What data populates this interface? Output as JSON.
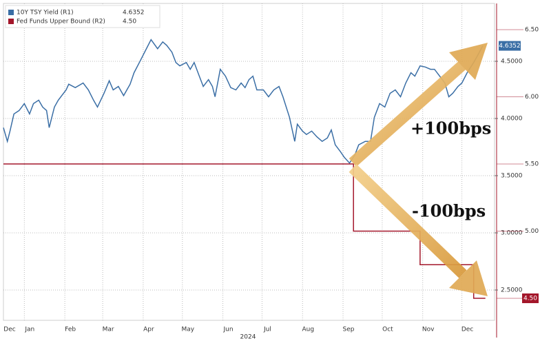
{
  "chart_data": {
    "type": "line",
    "xlabel": "2024",
    "xlim": [
      -16,
      360
    ],
    "xticks": [
      {
        "value": -16,
        "label": "Dec"
      },
      {
        "value": 0,
        "label": "Jan"
      },
      {
        "value": 31,
        "label": "Feb"
      },
      {
        "value": 60,
        "label": "Mar"
      },
      {
        "value": 91,
        "label": "Apr"
      },
      {
        "value": 121,
        "label": "May"
      },
      {
        "value": 152,
        "label": "Jun"
      },
      {
        "value": 182,
        "label": "Jul"
      },
      {
        "value": 213,
        "label": "Aug"
      },
      {
        "value": 244,
        "label": "Sep"
      },
      {
        "value": 274,
        "label": "Oct"
      },
      {
        "value": 305,
        "label": "Nov"
      },
      {
        "value": 335,
        "label": "Dec"
      }
    ],
    "ylim": [
      2.235,
      5.006
    ],
    "yticks": [
      {
        "value": 2.5,
        "label": "2.5000"
      },
      {
        "value": 3,
        "label": "3.0000"
      },
      {
        "value": 3.5,
        "label": "3.5000"
      },
      {
        "value": 4,
        "label": "4.0000"
      },
      {
        "value": 4.5,
        "label": "4.5000"
      }
    ],
    "y2lim": [
      4.336,
      6.695
    ],
    "y2ticks": [
      {
        "value": 4.5,
        "label": "4.50"
      },
      {
        "value": 5,
        "label": "5.00"
      },
      {
        "value": 5.5,
        "label": "5.50"
      },
      {
        "value": 6,
        "label": "6.00"
      },
      {
        "value": 6.5,
        "label": "6.50"
      }
    ],
    "grid": true,
    "legend": "top-left",
    "annotations": [
      "+100bps",
      "-100bps"
    ],
    "series": [
      {
        "name": "10Y TSY Yield (R1)",
        "color": "#3a6ea5",
        "x": [
          -16,
          -13,
          -11,
          -8,
          -4,
          0,
          4,
          7,
          11,
          14,
          17,
          19,
          23,
          26,
          32,
          34,
          39,
          45,
          49,
          53,
          56,
          61,
          65,
          68,
          72,
          76,
          81,
          84,
          89,
          93,
          97,
          102,
          106,
          109,
          113,
          116,
          119,
          124,
          127,
          130,
          134,
          137,
          141,
          144,
          146,
          150,
          154,
          158,
          162,
          166,
          169,
          172,
          175,
          178,
          183,
          187,
          191,
          195,
          198,
          203,
          207,
          209,
          213,
          216,
          220,
          224,
          228,
          232,
          235,
          238,
          242,
          245,
          249,
          253,
          256,
          261,
          265,
          268,
          272,
          276,
          280,
          284,
          288,
          292,
          296,
          299,
          303,
          307,
          311,
          314,
          318,
          322,
          325,
          328,
          332,
          335,
          339,
          344,
          347,
          351
        ],
        "values": [
          3.92,
          3.8,
          3.89,
          4.04,
          4.07,
          4.13,
          4.04,
          4.13,
          4.16,
          4.1,
          4.07,
          3.92,
          4.1,
          4.16,
          4.25,
          4.3,
          4.27,
          4.31,
          4.25,
          4.16,
          4.1,
          4.22,
          4.33,
          4.25,
          4.28,
          4.2,
          4.3,
          4.4,
          4.51,
          4.6,
          4.69,
          4.61,
          4.67,
          4.64,
          4.58,
          4.49,
          4.46,
          4.49,
          4.43,
          4.49,
          4.37,
          4.28,
          4.34,
          4.28,
          4.19,
          4.43,
          4.37,
          4.27,
          4.25,
          4.31,
          4.27,
          4.34,
          4.37,
          4.25,
          4.25,
          4.19,
          4.25,
          4.28,
          4.19,
          4.01,
          3.8,
          3.95,
          3.89,
          3.86,
          3.89,
          3.84,
          3.8,
          3.83,
          3.9,
          3.77,
          3.71,
          3.66,
          3.61,
          3.68,
          3.77,
          3.8,
          3.8,
          4.01,
          4.13,
          4.1,
          4.22,
          4.25,
          4.19,
          4.31,
          4.4,
          4.37,
          4.46,
          4.45,
          4.43,
          4.43,
          4.37,
          4.31,
          4.19,
          4.22,
          4.28,
          4.31,
          4.4,
          4.49,
          4.55,
          4.6352
        ]
      },
      {
        "name": "Fed Funds Upper Bound (R2)",
        "color": "#a3162a",
        "axis": "y2",
        "x": [
          -16,
          252,
          252,
          303,
          303,
          344,
          344,
          353
        ],
        "values": [
          5.5,
          5.5,
          5.0,
          5.0,
          4.75,
          4.75,
          4.5,
          4.5
        ],
        "value_labels": [
          null,
          null,
          null,
          null,
          null,
          null,
          null,
          "4.50"
        ]
      }
    ]
  }
}
